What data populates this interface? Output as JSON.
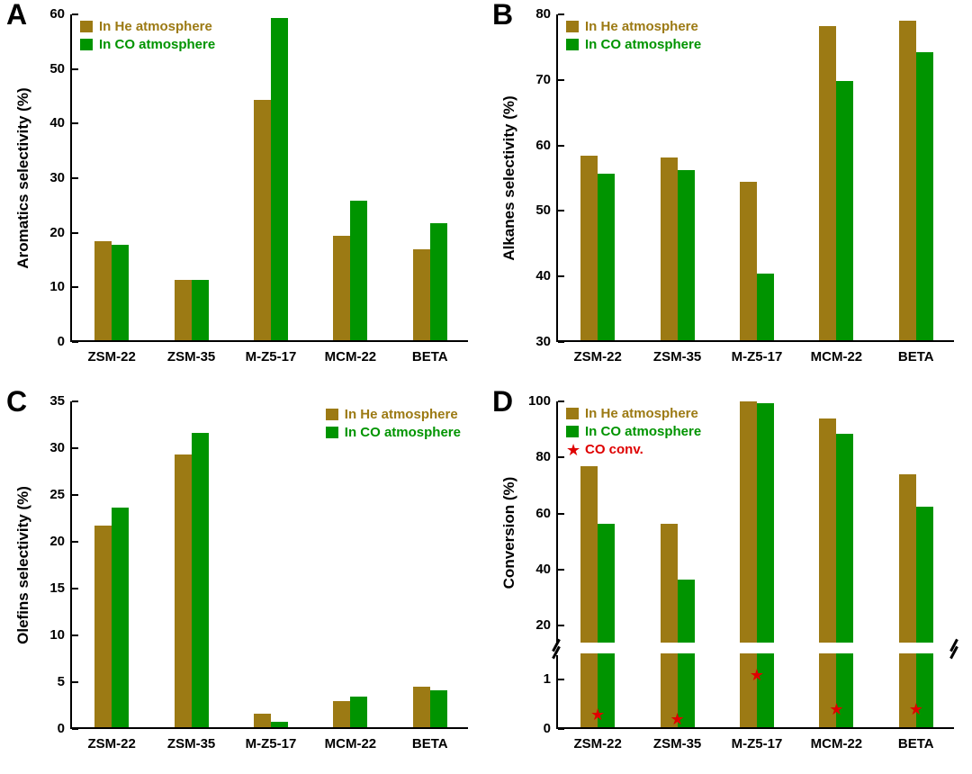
{
  "colors": {
    "he": "#9C7A14",
    "co": "#009400",
    "star": "#DF0000",
    "axis": "#000000",
    "background": "#FFFFFF"
  },
  "chart_data": [
    {
      "label": "A",
      "type": "bar",
      "ylabel": "Aromatics selectivity (%)",
      "ylim": [
        0,
        60
      ],
      "yticks": [
        0,
        10,
        20,
        30,
        40,
        50,
        60
      ],
      "categories": [
        "ZSM-22",
        "ZSM-35",
        "M-Z5-17",
        "MCM-22",
        "BETA"
      ],
      "series": [
        {
          "name": "In He atmosphere",
          "color_key": "he",
          "values": [
            18.2,
            11.1,
            44.0,
            19.2,
            16.7
          ]
        },
        {
          "name": "In CO atmosphere",
          "color_key": "co",
          "values": [
            17.4,
            11.0,
            59.0,
            25.5,
            21.4
          ]
        }
      ],
      "legend_position": "top-left",
      "grid": false
    },
    {
      "label": "B",
      "type": "bar",
      "ylabel": "Alkanes selectivity (%)",
      "ylim": [
        30,
        80
      ],
      "yticks": [
        30,
        40,
        50,
        60,
        70,
        80
      ],
      "categories": [
        "ZSM-22",
        "ZSM-35",
        "M-Z5-17",
        "MCM-22",
        "BETA"
      ],
      "series": [
        {
          "name": "In He atmosphere",
          "color_key": "he",
          "values": [
            58.2,
            57.9,
            54.2,
            78.0,
            78.8
          ]
        },
        {
          "name": "In CO atmosphere",
          "color_key": "co",
          "values": [
            55.4,
            56.0,
            40.2,
            69.5,
            74.0
          ]
        }
      ],
      "legend_position": "top-left",
      "grid": false
    },
    {
      "label": "C",
      "type": "bar",
      "ylabel": "Olefins selectivity (%)",
      "ylim": [
        0,
        35
      ],
      "yticks": [
        0,
        5,
        10,
        15,
        20,
        25,
        30,
        35
      ],
      "categories": [
        "ZSM-22",
        "ZSM-35",
        "M-Z5-17",
        "MCM-22",
        "BETA"
      ],
      "series": [
        {
          "name": "In He atmosphere",
          "color_key": "he",
          "values": [
            21.5,
            29.1,
            1.4,
            2.8,
            4.3
          ]
        },
        {
          "name": "In CO atmosphere",
          "color_key": "co",
          "values": [
            23.5,
            31.4,
            0.6,
            3.3,
            3.9
          ]
        }
      ],
      "legend_position": "top-right",
      "grid": false
    },
    {
      "label": "D",
      "type": "bar",
      "ylabel": "Conversion (%)",
      "broken_axis": true,
      "upper_axis": {
        "ylim": [
          14,
          100
        ],
        "yticks": [
          20,
          40,
          60,
          80,
          100
        ]
      },
      "lower_axis": {
        "ylim": [
          0,
          1.5
        ],
        "yticks": [
          0,
          1
        ]
      },
      "categories": [
        "ZSM-22",
        "ZSM-35",
        "M-Z5-17",
        "MCM-22",
        "BETA"
      ],
      "series": [
        {
          "name": "In He atmosphere",
          "color_key": "he",
          "values": [
            77.0,
            56.5,
            100.0,
            94.0,
            74.0
          ]
        },
        {
          "name": "In CO atmosphere",
          "color_key": "co",
          "values": [
            56.5,
            36.5,
            99.5,
            88.5,
            62.5
          ]
        }
      ],
      "star_series": {
        "name": "CO conv.",
        "color_key": "star",
        "values": [
          0.3,
          0.2,
          1.1,
          0.4,
          0.4
        ]
      },
      "legend_position": "top-left",
      "grid": false
    }
  ]
}
